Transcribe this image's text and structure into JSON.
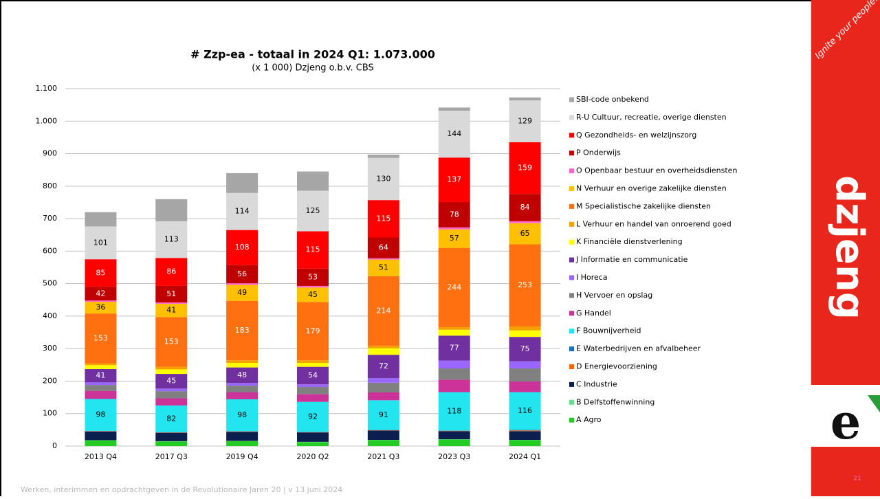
{
  "chart_data": {
    "type": "stacked_bar",
    "title": "# Zzp-ea - totaal in 2024 Q1: 1.073.000",
    "subtitle": "(x 1 000) Dzjeng o.b.v. CBS",
    "categories": [
      "2013 Q4",
      "2017 Q3",
      "2019 Q4",
      "2020 Q2",
      "2021 Q3",
      "2023 Q3",
      "2024 Q1"
    ],
    "ylim": [
      0,
      1100
    ],
    "yticks": [
      0,
      100,
      200,
      300,
      400,
      500,
      600,
      700,
      800,
      900,
      {
        "value": 1000,
        "label": "1.000"
      },
      {
        "value": 1100,
        "label": "1.100"
      }
    ],
    "grid": true,
    "legend": "right",
    "series": [
      {
        "name": "A Agro",
        "color": "#22cc22",
        "values": [
          17,
          14,
          15,
          12,
          18,
          20,
          18
        ]
      },
      {
        "name": "B Delfstoffenwinning",
        "color": "#66dd88",
        "values": [
          1,
          1,
          1,
          1,
          1,
          1,
          1
        ]
      },
      {
        "name": "C Industrie",
        "color": "#0a1f4d",
        "values": [
          27,
          26,
          28,
          29,
          29,
          25,
          27
        ]
      },
      {
        "name": "D Energievoorziening",
        "color": "#ff6600",
        "values": [
          1,
          1,
          1,
          1,
          1,
          1,
          2
        ]
      },
      {
        "name": "E Waterbedrijven en afvalbeheer",
        "color": "#1f6fb5",
        "values": [
          1,
          1,
          1,
          1,
          1,
          1,
          2
        ]
      },
      {
        "name": "F Bouwnijverheid",
        "color": "#22e5f0",
        "values": [
          98,
          82,
          98,
          92,
          91,
          118,
          116
        ],
        "value_labels": [
          "98",
          "82",
          "98",
          "92",
          "91",
          "118",
          "116"
        ]
      },
      {
        "name": "G Handel",
        "color": "#cc3399",
        "values": [
          25,
          22,
          22,
          24,
          24,
          38,
          33
        ]
      },
      {
        "name": "H Vervoer en opslag",
        "color": "#808080",
        "values": [
          18,
          22,
          20,
          22,
          30,
          35,
          40
        ]
      },
      {
        "name": "I Horeca",
        "color": "#9966ff",
        "values": [
          8,
          8,
          8,
          8,
          14,
          24,
          22
        ]
      },
      {
        "name": "J Informatie en communicatie",
        "color": "#7030a0",
        "values": [
          41,
          45,
          48,
          54,
          72,
          77,
          75
        ],
        "value_labels": [
          "41",
          "45",
          "48",
          "54",
          "72",
          "77",
          "75"
        ]
      },
      {
        "name": "K Financiële dienstverlening",
        "color": "#ffff00",
        "values": [
          12,
          14,
          14,
          12,
          20,
          18,
          20
        ]
      },
      {
        "name": "L Verhuur en handel van onroerend goed",
        "color": "#f5a000",
        "values": [
          6,
          8,
          8,
          8,
          8,
          8,
          12
        ]
      },
      {
        "name": "M Specialistische zakelijke diensten",
        "color": "#ff7010",
        "values": [
          153,
          153,
          183,
          179,
          214,
          244,
          253
        ],
        "value_labels": [
          "153",
          "153",
          "183",
          "179",
          "214",
          "244",
          "253"
        ]
      },
      {
        "name": "N Verhuur en overige zakelijke diensten",
        "color": "#ffc000",
        "values": [
          36,
          41,
          49,
          45,
          51,
          57,
          65
        ],
        "value_labels": [
          "36",
          "41",
          "49",
          "45",
          "51",
          "57",
          "65"
        ]
      },
      {
        "name": "O Openbaar bestuur en overheidsdiensten",
        "color": "#ff66cc",
        "values": [
          4,
          4,
          5,
          5,
          4,
          6,
          6
        ]
      },
      {
        "name": "P Onderwijs",
        "color": "#c00000",
        "values": [
          42,
          51,
          56,
          53,
          64,
          78,
          84
        ],
        "value_labels": [
          "42",
          "51",
          "56",
          "53",
          "64",
          "78",
          "84"
        ]
      },
      {
        "name": "Q Gezondheids- en welzijnszorg",
        "color": "#ff0000",
        "values": [
          85,
          86,
          108,
          115,
          115,
          137,
          159
        ],
        "value_labels": [
          "85",
          "86",
          "108",
          "115",
          "115",
          "137",
          "159"
        ]
      },
      {
        "name": "R-U Cultuur, recreatie, overige diensten",
        "color": "#d9d9d9",
        "values": [
          101,
          113,
          114,
          125,
          130,
          144,
          129
        ],
        "value_labels": [
          "101",
          "113",
          "114",
          "125",
          "130",
          "144",
          "129"
        ]
      },
      {
        "name": "SBI-code onbekend",
        "color": "#a6a6a6",
        "values": [
          44,
          68,
          61,
          59,
          10,
          10,
          9
        ]
      }
    ]
  },
  "slide": {
    "footer": "Werken, interimmen en opdrachtgeven in de Revolutionaire Jaren 20  |  v 13 juni 2024",
    "brand": "dzjeng",
    "tagline": "Ignite your people!",
    "page_number": "21"
  }
}
